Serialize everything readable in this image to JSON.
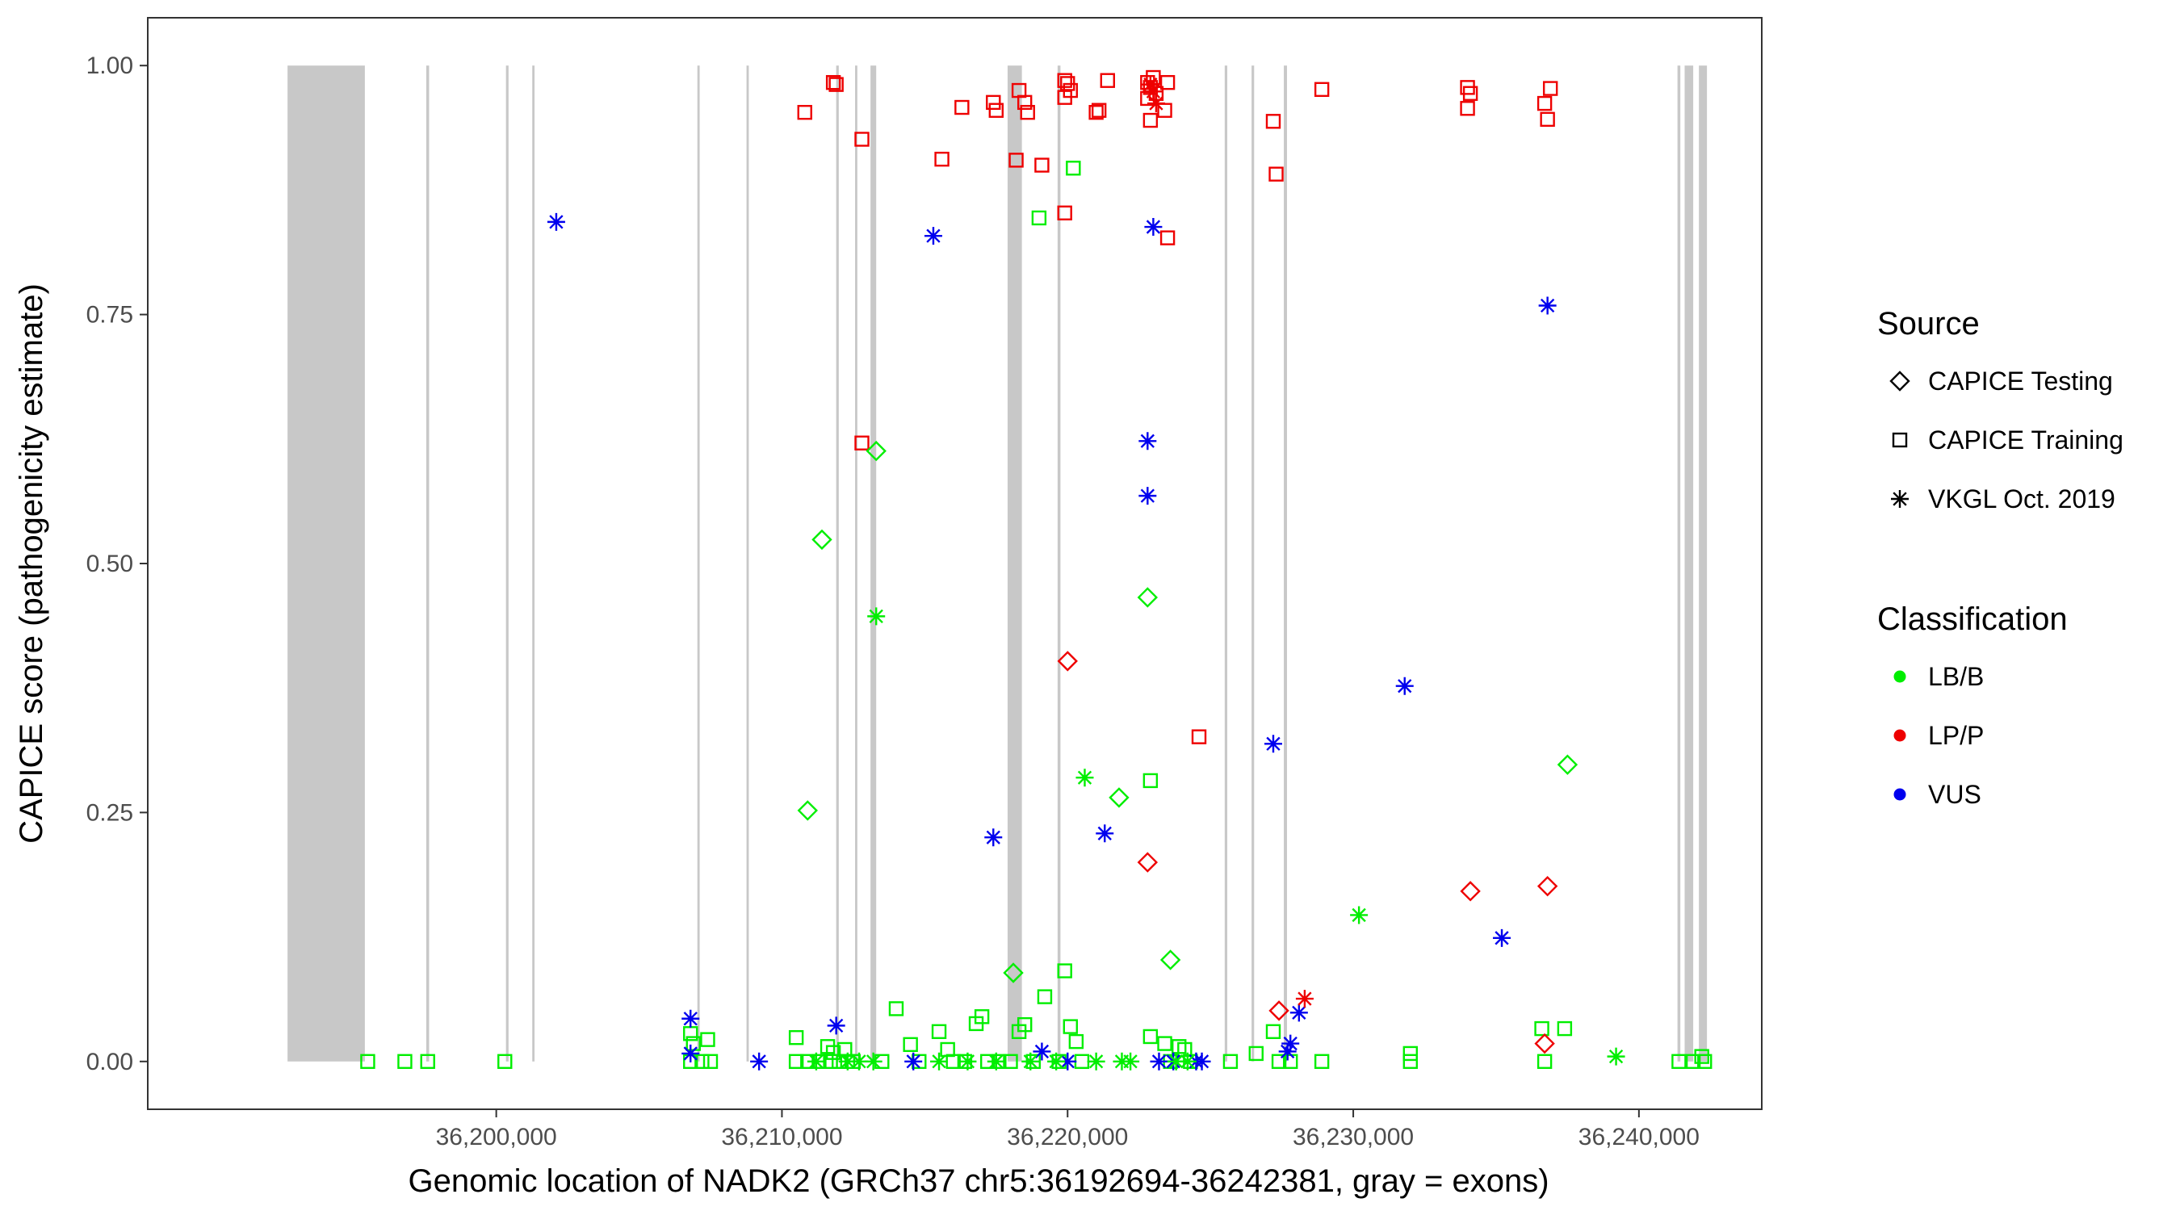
{
  "chart_data": {
    "type": "scatter",
    "title": "",
    "xlabel": "Genomic location of NADK2 (GRCh37 chr5:36192694-36242381, gray = exons)",
    "ylabel": "CAPICE score (pathogenicity estimate)",
    "xlim": [
      36187800,
      36244300
    ],
    "ylim": [
      -0.048,
      1.048
    ],
    "x_ticks": [
      36200000,
      36210000,
      36220000,
      36230000,
      36240000
    ],
    "x_tick_labels": [
      "36,200,000",
      "36,210,000",
      "36,220,000",
      "36,230,000",
      "36,240,000"
    ],
    "y_ticks": [
      0,
      0.25,
      0.5,
      0.75,
      1
    ],
    "y_tick_labels": [
      "0.00",
      "0.25",
      "0.50",
      "0.75",
      "1.00"
    ],
    "grid": false,
    "colors": {
      "LB/B": "#00ee00",
      "LP/P": "#ee0000",
      "VUS": "#0000ee",
      "exon": "#c8c8c8",
      "frame": "#333333",
      "tick": "#333333"
    },
    "legend": {
      "placement": "right",
      "source_title": "Source",
      "source_items": [
        {
          "label": "CAPICE Testing",
          "shape": "diamond"
        },
        {
          "label": "CAPICE Training",
          "shape": "square"
        },
        {
          "label": "VKGL Oct. 2019",
          "shape": "asterisk"
        }
      ],
      "class_title": "Classification",
      "class_items": [
        {
          "label": "LB/B"
        },
        {
          "label": "LP/P"
        },
        {
          "label": "VUS"
        }
      ]
    },
    "exons": [
      [
        36192694,
        36195400
      ],
      [
        36197550,
        36197650
      ],
      [
        36200340,
        36200430
      ],
      [
        36201260,
        36201340
      ],
      [
        36207040,
        36207120
      ],
      [
        36208760,
        36208840
      ],
      [
        36211900,
        36211990
      ],
      [
        36212560,
        36212640
      ],
      [
        36213100,
        36213300
      ],
      [
        36217900,
        36218400
      ],
      [
        36219650,
        36219750
      ],
      [
        36225500,
        36225590
      ],
      [
        36226440,
        36226530
      ],
      [
        36227570,
        36227680
      ],
      [
        36241350,
        36241450
      ],
      [
        36241600,
        36241900
      ],
      [
        36242100,
        36242381
      ]
    ],
    "series": [
      {
        "name": "CAPICE Training",
        "shape": "square",
        "class": "LP/P",
        "points": [
          [
            36210800,
            0.953
          ],
          [
            36211800,
            0.983
          ],
          [
            36211900,
            0.981
          ],
          [
            36212800,
            0.926
          ],
          [
            36215600,
            0.906
          ],
          [
            36216300,
            0.958
          ],
          [
            36217400,
            0.963
          ],
          [
            36217500,
            0.955
          ],
          [
            36218300,
            0.975
          ],
          [
            36218500,
            0.963
          ],
          [
            36218600,
            0.953
          ],
          [
            36218200,
            0.905
          ],
          [
            36219100,
            0.9
          ],
          [
            36219900,
            0.985
          ],
          [
            36220000,
            0.982
          ],
          [
            36220100,
            0.975
          ],
          [
            36219900,
            0.968
          ],
          [
            36221000,
            0.953
          ],
          [
            36221100,
            0.955
          ],
          [
            36221400,
            0.985
          ],
          [
            36222800,
            0.983
          ],
          [
            36222900,
            0.978
          ],
          [
            36223000,
            0.988
          ],
          [
            36223100,
            0.972
          ],
          [
            36222800,
            0.967
          ],
          [
            36223500,
            0.983
          ],
          [
            36222900,
            0.945
          ],
          [
            36223400,
            0.955
          ],
          [
            36219900,
            0.852
          ],
          [
            36223500,
            0.827
          ],
          [
            36212800,
            0.621
          ],
          [
            36224600,
            0.326
          ],
          [
            36227200,
            0.944
          ],
          [
            36227300,
            0.891
          ],
          [
            36228900,
            0.976
          ],
          [
            36234000,
            0.978
          ],
          [
            36234100,
            0.972
          ],
          [
            36234000,
            0.957
          ],
          [
            36236700,
            0.962
          ],
          [
            36236900,
            0.977
          ],
          [
            36236800,
            0.946
          ]
        ]
      },
      {
        "name": "CAPICE Training",
        "shape": "square",
        "class": "LB/B",
        "points": [
          [
            36195500,
            0.0
          ],
          [
            36196800,
            0.0
          ],
          [
            36197600,
            0.0
          ],
          [
            36200300,
            0.0
          ],
          [
            36206800,
            0.028
          ],
          [
            36206900,
            0.018
          ],
          [
            36207400,
            0.022
          ],
          [
            36206800,
            0.0
          ],
          [
            36207200,
            0.0
          ],
          [
            36207500,
            0.0
          ],
          [
            36210500,
            0.024
          ],
          [
            36210500,
            0.0
          ],
          [
            36210900,
            0.0
          ],
          [
            36211300,
            0.0
          ],
          [
            36211600,
            0.015
          ],
          [
            36211800,
            0.009
          ],
          [
            36212200,
            0.012
          ],
          [
            36212300,
            0.0
          ],
          [
            36211700,
            0.0
          ],
          [
            36212000,
            0.0
          ],
          [
            36212500,
            0.0
          ],
          [
            36213500,
            0.0
          ],
          [
            36214000,
            0.053
          ],
          [
            36214500,
            0.017
          ],
          [
            36214800,
            0.0
          ],
          [
            36215500,
            0.03
          ],
          [
            36215800,
            0.012
          ],
          [
            36216000,
            0.0
          ],
          [
            36216400,
            0.0
          ],
          [
            36216800,
            0.038
          ],
          [
            36217000,
            0.045
          ],
          [
            36217200,
            0.0
          ],
          [
            36217600,
            0.0
          ],
          [
            36218000,
            0.0
          ],
          [
            36218300,
            0.03
          ],
          [
            36218500,
            0.037
          ],
          [
            36218800,
            0.0
          ],
          [
            36219200,
            0.065
          ],
          [
            36219000,
            0.847
          ],
          [
            36220200,
            0.897
          ],
          [
            36219700,
            0.0
          ],
          [
            36219900,
            0.091
          ],
          [
            36220100,
            0.035
          ],
          [
            36220300,
            0.02
          ],
          [
            36220500,
            0.0
          ],
          [
            36222900,
            0.282
          ],
          [
            36222900,
            0.025
          ],
          [
            36223400,
            0.018
          ],
          [
            36223600,
            0.0
          ],
          [
            36223900,
            0.015
          ],
          [
            36224100,
            0.012
          ],
          [
            36224300,
            0.0
          ],
          [
            36225700,
            0.0
          ],
          [
            36226600,
            0.008
          ],
          [
            36227200,
            0.03
          ],
          [
            36227400,
            0.0
          ],
          [
            36227800,
            0.0
          ],
          [
            36228900,
            0.0
          ],
          [
            36232000,
            0.008
          ],
          [
            36232000,
            0.0
          ],
          [
            36236600,
            0.033
          ],
          [
            36237400,
            0.033
          ],
          [
            36236700,
            0.0
          ],
          [
            36241400,
            0.0
          ],
          [
            36241900,
            0.0
          ],
          [
            36242200,
            0.005
          ],
          [
            36242300,
            0.0
          ]
        ]
      },
      {
        "name": "CAPICE Testing",
        "shape": "diamond",
        "class": "LB/B",
        "points": [
          [
            36213300,
            0.613
          ],
          [
            36211400,
            0.524
          ],
          [
            36210900,
            0.252
          ],
          [
            36222800,
            0.466
          ],
          [
            36221800,
            0.265
          ],
          [
            36223600,
            0.102
          ],
          [
            36218100,
            0.089
          ],
          [
            36237500,
            0.298
          ]
        ]
      },
      {
        "name": "CAPICE Testing",
        "shape": "diamond",
        "class": "LP/P",
        "points": [
          [
            36220000,
            0.402
          ],
          [
            36222800,
            0.2
          ],
          [
            36227400,
            0.051
          ],
          [
            36234100,
            0.171
          ],
          [
            36236800,
            0.176
          ],
          [
            36236700,
            0.018
          ]
        ]
      },
      {
        "name": "VKGL Oct. 2019",
        "shape": "asterisk",
        "class": "VUS",
        "points": [
          [
            36202100,
            0.843
          ],
          [
            36215300,
            0.829
          ],
          [
            36223000,
            0.838
          ],
          [
            36222800,
            0.623
          ],
          [
            36222800,
            0.568
          ],
          [
            36217400,
            0.225
          ],
          [
            36221300,
            0.229
          ],
          [
            36227200,
            0.319
          ],
          [
            36231800,
            0.377
          ],
          [
            36236800,
            0.759
          ],
          [
            36235200,
            0.124
          ],
          [
            36228100,
            0.049
          ],
          [
            36227800,
            0.018
          ],
          [
            36227700,
            0.01
          ],
          [
            36206800,
            0.043
          ],
          [
            36206800,
            0.008
          ],
          [
            36209200,
            0.0
          ],
          [
            36211900,
            0.036
          ],
          [
            36214600,
            0.0
          ],
          [
            36219100,
            0.01
          ],
          [
            36220000,
            0.0
          ],
          [
            36223200,
            0.0
          ],
          [
            36223700,
            0.0
          ],
          [
            36224500,
            0.0
          ],
          [
            36224700,
            0.0
          ]
        ]
      },
      {
        "name": "VKGL Oct. 2019",
        "shape": "asterisk",
        "class": "LB/B",
        "points": [
          [
            36213300,
            0.447
          ],
          [
            36220600,
            0.285
          ],
          [
            36230200,
            0.147
          ],
          [
            36239200,
            0.005
          ],
          [
            36211200,
            0.0
          ],
          [
            36212300,
            0.0
          ],
          [
            36212700,
            0.0
          ],
          [
            36213200,
            0.0
          ],
          [
            36215500,
            0.0
          ],
          [
            36216500,
            0.0
          ],
          [
            36217500,
            0.0
          ],
          [
            36218700,
            0.0
          ],
          [
            36219600,
            0.0
          ],
          [
            36221000,
            0.0
          ],
          [
            36221900,
            0.0
          ],
          [
            36222200,
            0.0
          ],
          [
            36223800,
            0.0
          ],
          [
            36224200,
            0.0
          ]
        ]
      },
      {
        "name": "VKGL Oct. 2019",
        "shape": "asterisk",
        "class": "LP/P",
        "points": [
          [
            36222900,
            0.981
          ],
          [
            36223000,
            0.974
          ],
          [
            36223100,
            0.962
          ],
          [
            36228300,
            0.063
          ]
        ]
      }
    ]
  }
}
